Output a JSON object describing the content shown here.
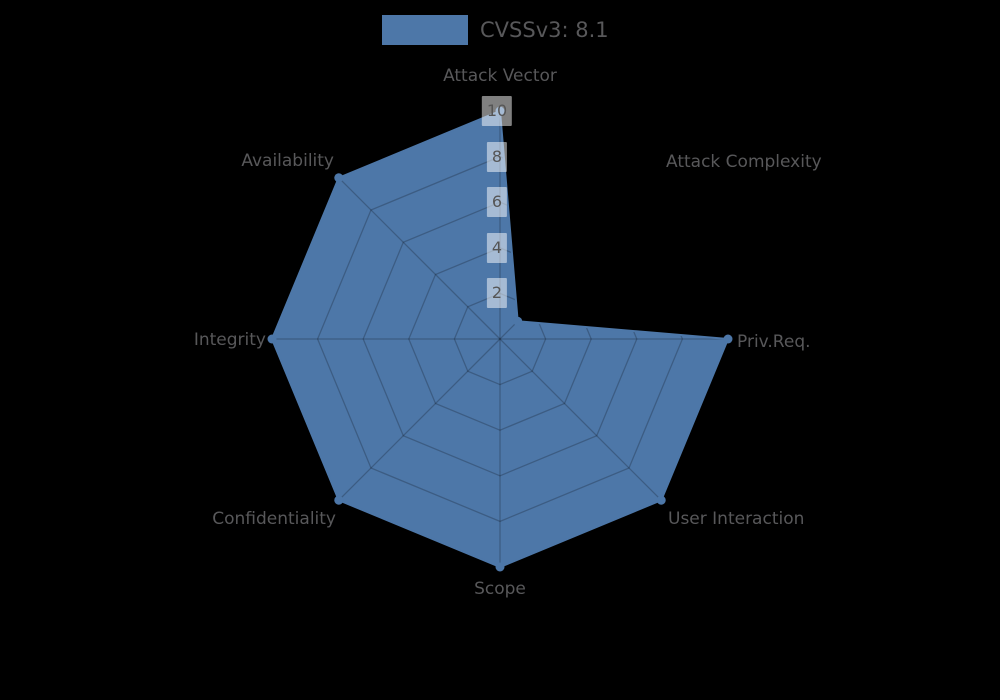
{
  "background": "#000000",
  "legend": {
    "label": "CVSSv3: 8.1",
    "swatch_color": "#4d77a8"
  },
  "chart_data": {
    "type": "radar",
    "title": "",
    "axes": [
      "Attack Vector",
      "Attack Complexity",
      "Priv.Req.",
      "User Interaction",
      "Scope",
      "Confidentiality",
      "Integrity",
      "Availability"
    ],
    "series": [
      {
        "name": "CVSSv3: 8.1",
        "values": [
          10,
          1.1,
          10,
          10,
          10,
          10,
          10,
          10
        ]
      }
    ],
    "scale": {
      "min": 0,
      "max": 10,
      "tick_values": [
        2,
        4,
        6,
        8,
        10
      ]
    },
    "grid": {
      "shape": "polygon",
      "rings": 5,
      "spokes": 8
    },
    "legend_position": "top-center",
    "colors": {
      "series_fill": "#4d77a8",
      "series_line": "#4d77a8",
      "vertex_dot": "#4d77a8",
      "grid_line": "rgba(0,0,0,0.22)",
      "axis_label": "#58585a",
      "tick_label": "#555555",
      "tick_bg": "rgba(255,255,255,0.5)",
      "legend_text": "#58585a"
    }
  }
}
